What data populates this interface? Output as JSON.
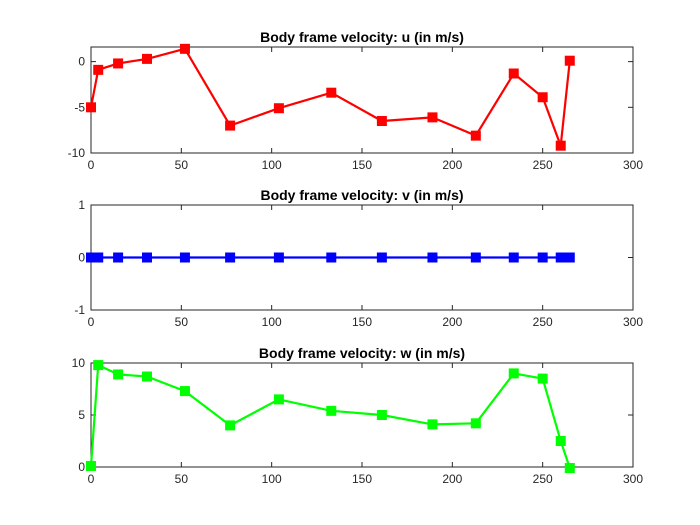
{
  "chart_data": [
    {
      "type": "line",
      "title": "Body frame velocity: u (in m/s)",
      "xlabel": "",
      "ylabel": "",
      "xlim": [
        0,
        300
      ],
      "ylim": [
        -10,
        1.6
      ],
      "xticks": [
        "0",
        "50",
        "100",
        "150",
        "200",
        "250",
        "300"
      ],
      "yticks": [
        "-10",
        "-5",
        "0"
      ],
      "grid": false,
      "color": "#ff0000",
      "marker": "square",
      "x": [
        0,
        4,
        15,
        31,
        52,
        77,
        104,
        133,
        161,
        189,
        213,
        234,
        250,
        260,
        265
      ],
      "y": [
        -5.0,
        -0.9,
        -0.2,
        0.3,
        1.4,
        -7.0,
        -5.1,
        -3.4,
        -6.5,
        -6.1,
        -8.1,
        -1.3,
        -3.9,
        -9.2,
        0.1
      ]
    },
    {
      "type": "line",
      "title": "Body frame velocity: v (in m/s)",
      "xlabel": "",
      "ylabel": "",
      "xlim": [
        0,
        300
      ],
      "ylim": [
        -1,
        1
      ],
      "xticks": [
        "0",
        "50",
        "100",
        "150",
        "200",
        "250",
        "300"
      ],
      "yticks": [
        "-1",
        "0",
        "1"
      ],
      "grid": false,
      "color": "#0000ff",
      "marker": "square",
      "x": [
        0,
        4,
        15,
        31,
        52,
        77,
        104,
        133,
        161,
        189,
        213,
        234,
        250,
        260,
        265
      ],
      "y": [
        0,
        0,
        0,
        0,
        0,
        0,
        0,
        0,
        0,
        0,
        0,
        0,
        0,
        0,
        0
      ]
    },
    {
      "type": "line",
      "title": "Body frame velocity: w (in m/s)",
      "xlabel": "",
      "ylabel": "",
      "xlim": [
        0,
        300
      ],
      "ylim": [
        0,
        10
      ],
      "xticks": [
        "0",
        "50",
        "100",
        "150",
        "200",
        "250",
        "300"
      ],
      "yticks": [
        "0",
        "5",
        "10"
      ],
      "grid": false,
      "color": "#00ff00",
      "marker": "square",
      "x": [
        0,
        4,
        15,
        31,
        52,
        77,
        104,
        133,
        161,
        189,
        213,
        234,
        250,
        260,
        265
      ],
      "y": [
        0.1,
        9.8,
        8.9,
        8.7,
        7.3,
        4.0,
        6.5,
        5.4,
        5.0,
        4.1,
        4.2,
        9.0,
        8.5,
        2.5,
        -0.1
      ]
    }
  ]
}
